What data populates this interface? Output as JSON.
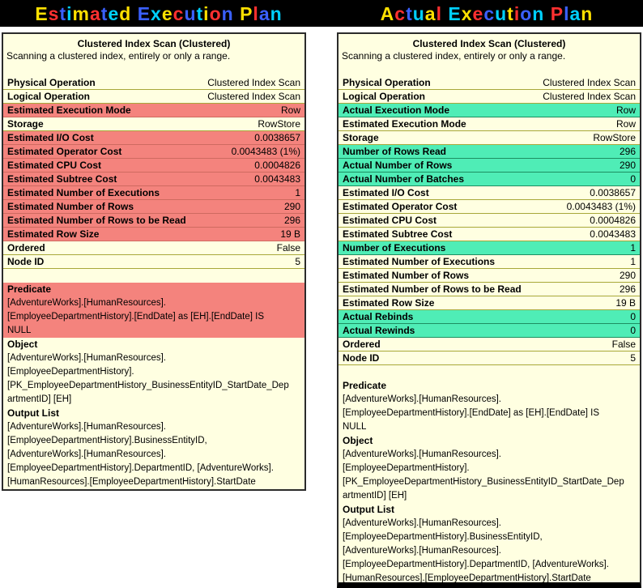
{
  "header": {
    "left_title": "Estimated Execution Plan",
    "right_title": "Actual Execution Plan",
    "title_palette": [
      "#FFE000",
      "#FF3030",
      "#3A60FF",
      "#00D0FF"
    ]
  },
  "colors": {
    "tooltip_bg": "#FFFFE1",
    "highlight_red": "#F4837D",
    "highlight_green": "#4FEDB6",
    "separator": "#A8A83A",
    "header_bg": "#000000"
  },
  "estimated_panel": {
    "title": "Clustered Index Scan (Clustered)",
    "description": "Scanning a clustered index, entirely or only a range.",
    "rows": [
      {
        "label": "Physical Operation",
        "value": "Clustered Index Scan",
        "hl": ""
      },
      {
        "label": "Logical Operation",
        "value": "Clustered Index Scan",
        "hl": ""
      },
      {
        "label": "Estimated Execution Mode",
        "value": "Row",
        "hl": "red"
      },
      {
        "label": "Storage",
        "value": "RowStore",
        "hl": ""
      },
      {
        "label": "Estimated I/O Cost",
        "value": "0.0038657",
        "hl": "red"
      },
      {
        "label": "Estimated Operator Cost",
        "value": "0.0043483 (1%)",
        "hl": "red"
      },
      {
        "label": "Estimated CPU Cost",
        "value": "0.0004826",
        "hl": "red"
      },
      {
        "label": "Estimated Subtree Cost",
        "value": "0.0043483",
        "hl": "red"
      },
      {
        "label": "Estimated Number of Executions",
        "value": "1",
        "hl": "red"
      },
      {
        "label": "Estimated Number of Rows",
        "value": "290",
        "hl": "red"
      },
      {
        "label": "Estimated Number of Rows to be Read",
        "value": "296",
        "hl": "red"
      },
      {
        "label": "Estimated Row Size",
        "value": "19 B",
        "hl": "red"
      },
      {
        "label": "Ordered",
        "value": "False",
        "hl": ""
      },
      {
        "label": "Node ID",
        "value": "5",
        "hl": ""
      }
    ],
    "sections": [
      {
        "label": "Predicate",
        "hl": "red",
        "text": "[AdventureWorks].[HumanResources].\n[EmployeeDepartmentHistory].[EndDate] as [EH].[EndDate] IS\nNULL"
      },
      {
        "label": "Object",
        "hl": "",
        "text": "[AdventureWorks].[HumanResources].\n[EmployeeDepartmentHistory].\n[PK_EmployeeDepartmentHistory_BusinessEntityID_StartDate_Dep\nartmentID] [EH]"
      },
      {
        "label": "Output List",
        "hl": "",
        "text": "[AdventureWorks].[HumanResources].\n[EmployeeDepartmentHistory].BusinessEntityID,\n[AdventureWorks].[HumanResources].\n[EmployeeDepartmentHistory].DepartmentID, [AdventureWorks].\n[HumanResources].[EmployeeDepartmentHistory].StartDate"
      }
    ]
  },
  "actual_panel": {
    "title": "Clustered Index Scan (Clustered)",
    "description": "Scanning a clustered index, entirely or only a range.",
    "rows": [
      {
        "label": "Physical Operation",
        "value": "Clustered Index Scan",
        "hl": ""
      },
      {
        "label": "Logical Operation",
        "value": "Clustered Index Scan",
        "hl": ""
      },
      {
        "label": "Actual Execution Mode",
        "value": "Row",
        "hl": "green"
      },
      {
        "label": "Estimated Execution Mode",
        "value": "Row",
        "hl": ""
      },
      {
        "label": "Storage",
        "value": "RowStore",
        "hl": ""
      },
      {
        "label": "Number of Rows Read",
        "value": "296",
        "hl": "green"
      },
      {
        "label": "Actual Number of Rows",
        "value": "290",
        "hl": "green"
      },
      {
        "label": "Actual Number of Batches",
        "value": "0",
        "hl": "green"
      },
      {
        "label": "Estimated I/O Cost",
        "value": "0.0038657",
        "hl": ""
      },
      {
        "label": "Estimated Operator Cost",
        "value": "0.0043483 (1%)",
        "hl": ""
      },
      {
        "label": "Estimated CPU Cost",
        "value": "0.0004826",
        "hl": ""
      },
      {
        "label": "Estimated Subtree Cost",
        "value": "0.0043483",
        "hl": ""
      },
      {
        "label": "Number of Executions",
        "value": "1",
        "hl": "green"
      },
      {
        "label": "Estimated Number of Executions",
        "value": "1",
        "hl": ""
      },
      {
        "label": "Estimated Number of Rows",
        "value": "290",
        "hl": ""
      },
      {
        "label": "Estimated Number of Rows to be Read",
        "value": "296",
        "hl": ""
      },
      {
        "label": "Estimated Row Size",
        "value": "19 B",
        "hl": ""
      },
      {
        "label": "Actual Rebinds",
        "value": "0",
        "hl": "green"
      },
      {
        "label": "Actual Rewinds",
        "value": "0",
        "hl": "green"
      },
      {
        "label": "Ordered",
        "value": "False",
        "hl": ""
      },
      {
        "label": "Node ID",
        "value": "5",
        "hl": ""
      }
    ],
    "sections": [
      {
        "label": "Predicate",
        "hl": "",
        "text": "[AdventureWorks].[HumanResources].\n[EmployeeDepartmentHistory].[EndDate] as [EH].[EndDate] IS\nNULL"
      },
      {
        "label": "Object",
        "hl": "",
        "text": "[AdventureWorks].[HumanResources].\n[EmployeeDepartmentHistory].\n[PK_EmployeeDepartmentHistory_BusinessEntityID_StartDate_Dep\nartmentID] [EH]"
      },
      {
        "label": "Output List",
        "hl": "",
        "text": "[AdventureWorks].[HumanResources].\n[EmployeeDepartmentHistory].BusinessEntityID,\n[AdventureWorks].[HumanResources].\n[EmployeeDepartmentHistory].DepartmentID, [AdventureWorks].\n[HumanResources].[EmployeeDepartmentHistory].StartDate"
      }
    ]
  }
}
